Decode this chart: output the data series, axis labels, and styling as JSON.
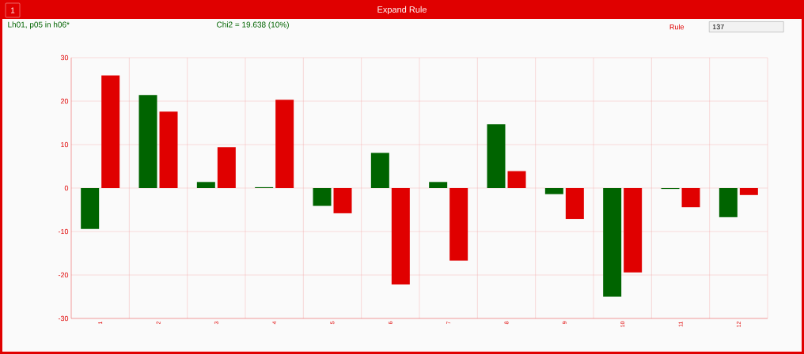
{
  "chart_data": {
    "type": "bar",
    "title": "Expand Rule",
    "subtitle": "Lh01, p05 in h06*",
    "annotations": [
      "Chi2 = 19.638 (10%)",
      "1",
      "Rule",
      "137"
    ],
    "categories": [
      "1",
      "2",
      "3",
      "4",
      "5",
      "6",
      "7",
      "8",
      "9",
      "10",
      "11",
      "12"
    ],
    "series": [
      {
        "color": "#006400",
        "values": [
          -9.4,
          21.4,
          1.4,
          0.2,
          -4.1,
          8.1,
          1.4,
          14.7,
          -1.4,
          -25.0,
          -0.2,
          -6.7
        ]
      },
      {
        "color": "#e00000",
        "values": [
          25.9,
          17.6,
          9.4,
          20.3,
          -5.8,
          -22.2,
          -16.7,
          3.9,
          -7.1,
          -19.4,
          -4.4,
          -1.6
        ]
      }
    ],
    "ylim": [
      -30,
      30
    ],
    "yticks": [
      -30,
      -20,
      -10,
      0,
      10,
      20,
      30
    ],
    "grid": true
  }
}
